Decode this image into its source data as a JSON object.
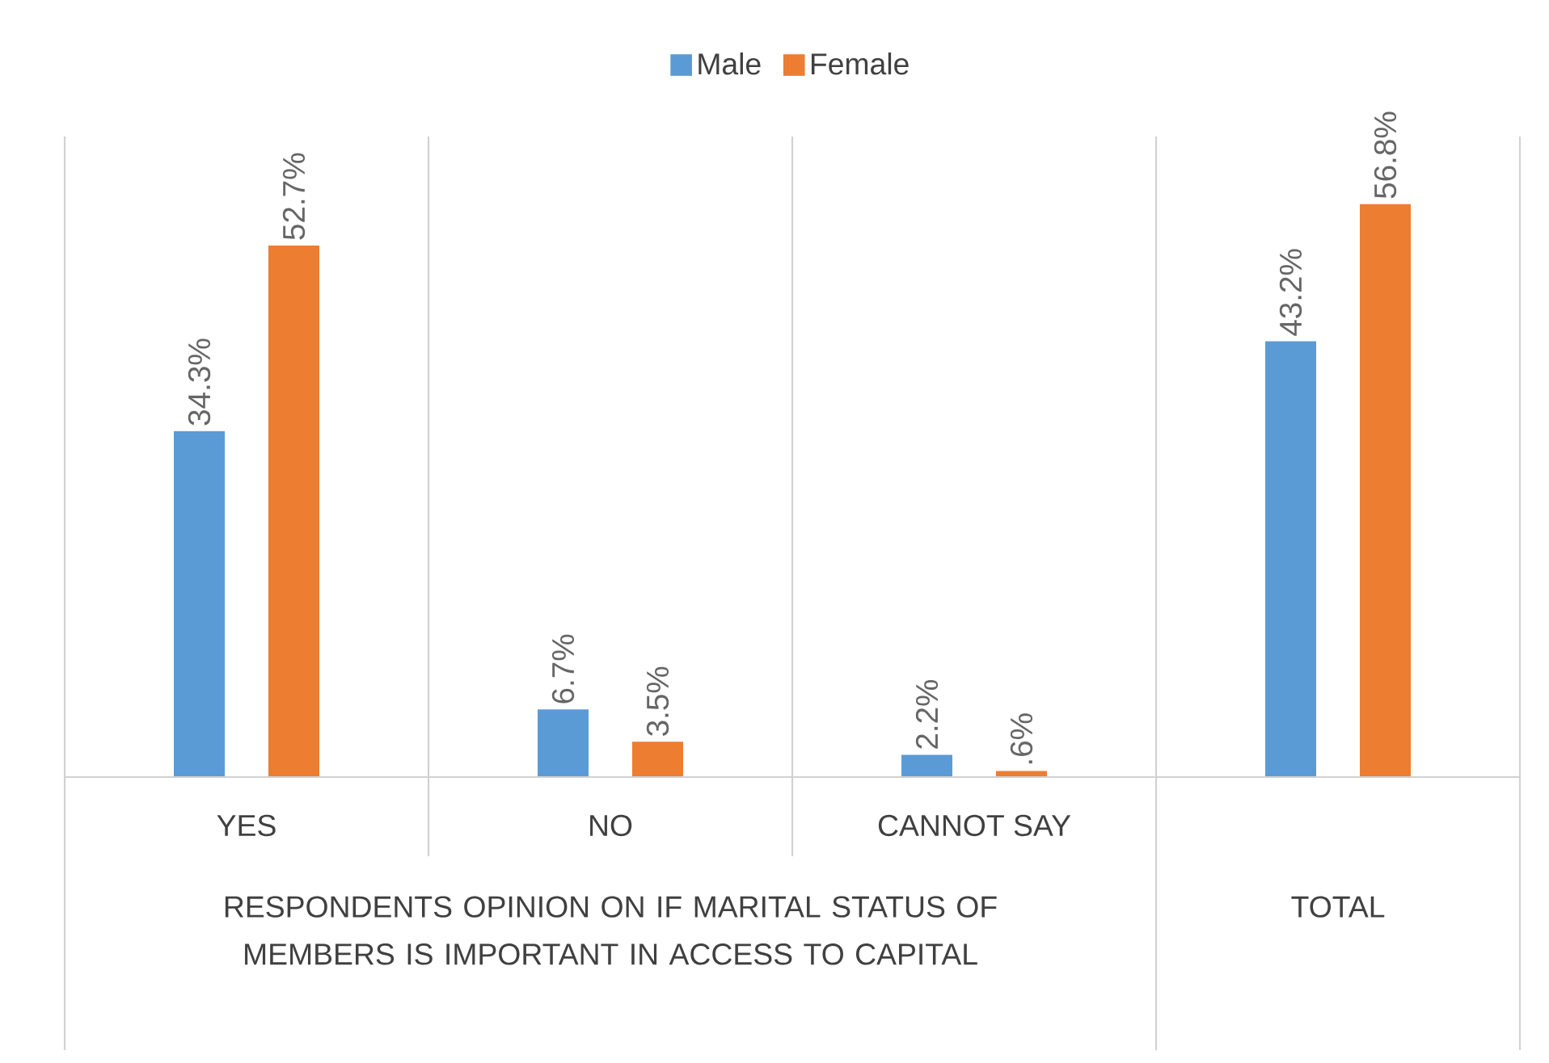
{
  "chart_data": {
    "type": "bar",
    "categories": [
      "YES",
      "NO",
      "CANNOT SAY",
      null
    ],
    "series": [
      {
        "name": "Male",
        "color": "#5b9bd5",
        "values": [
          34.3,
          6.7,
          2.2,
          43.2
        ],
        "value_labels": [
          "34.3%",
          "6.7%",
          "2.2%",
          "43.2%"
        ]
      },
      {
        "name": "Female",
        "color": "#ed7d31",
        "values": [
          52.7,
          3.5,
          0.6,
          56.8
        ],
        "value_labels": [
          "52.7%",
          "3.5%",
          ".6%",
          "56.8%"
        ]
      }
    ],
    "annotations": [
      "RESPONDENTS OPINION ON IF MARITAL STATUS OF MEMBERS IS IMPORTANT IN ACCESS TO CAPITAL",
      "TOTAL"
    ],
    "legend": "top"
  }
}
